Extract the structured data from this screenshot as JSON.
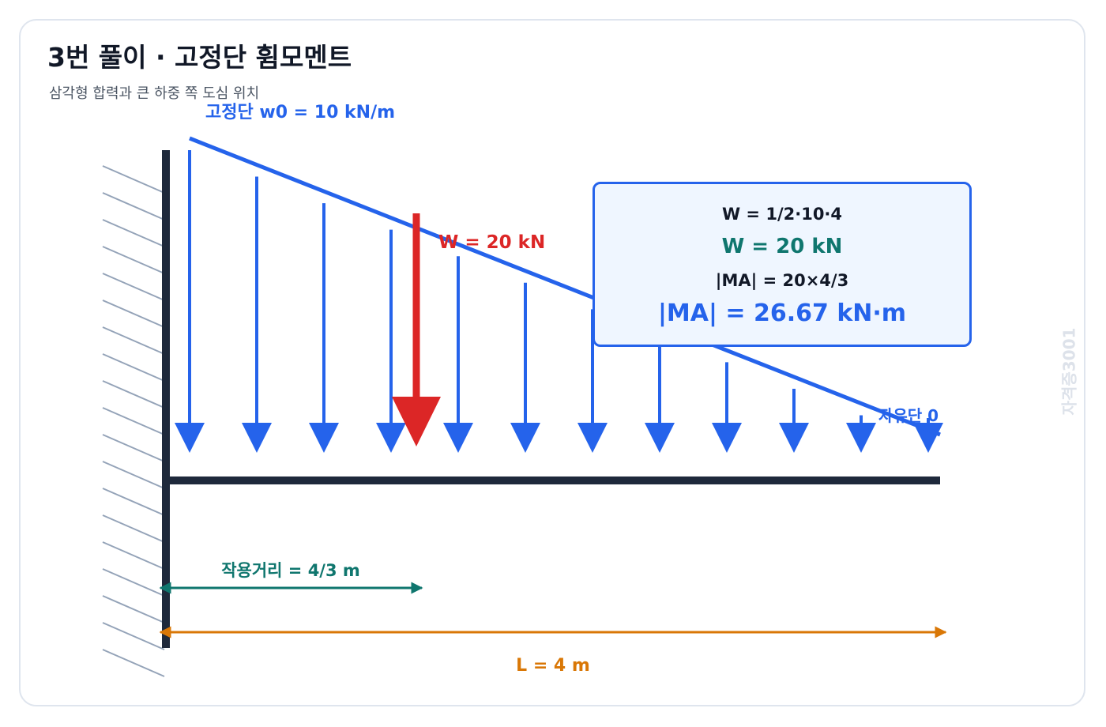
{
  "header": {
    "title": "3번 풀이 · 고정단 휨모멘트",
    "subtitle": "삼각형 합력과 큰 하중 쪽 도심 위치"
  },
  "labels": {
    "w0": "고정단 w0 = 10 kN/m",
    "resultant": "W = 20 kN",
    "free_end": "자유단 0",
    "arm": "작용거리 = 4/3 m",
    "length": "L = 4 m"
  },
  "calc": {
    "w_formula": "W = 1/2·10·4",
    "w_result": "W = 20 kN",
    "m_formula": "|MA| = 20×4/3",
    "m_result": "|MA| = 26.67 kN·m"
  },
  "watermark": "자격증3001",
  "load": {
    "w0": 10,
    "length": 4,
    "resultant": 20,
    "arm": 1.3333,
    "arrow_count": 12
  },
  "colors": {
    "load": "#2563eb",
    "resultant": "#dc2626",
    "arm": "#0f766e",
    "length": "#d97706",
    "beam": "#1e293b",
    "hatch": "#94a3b8"
  }
}
